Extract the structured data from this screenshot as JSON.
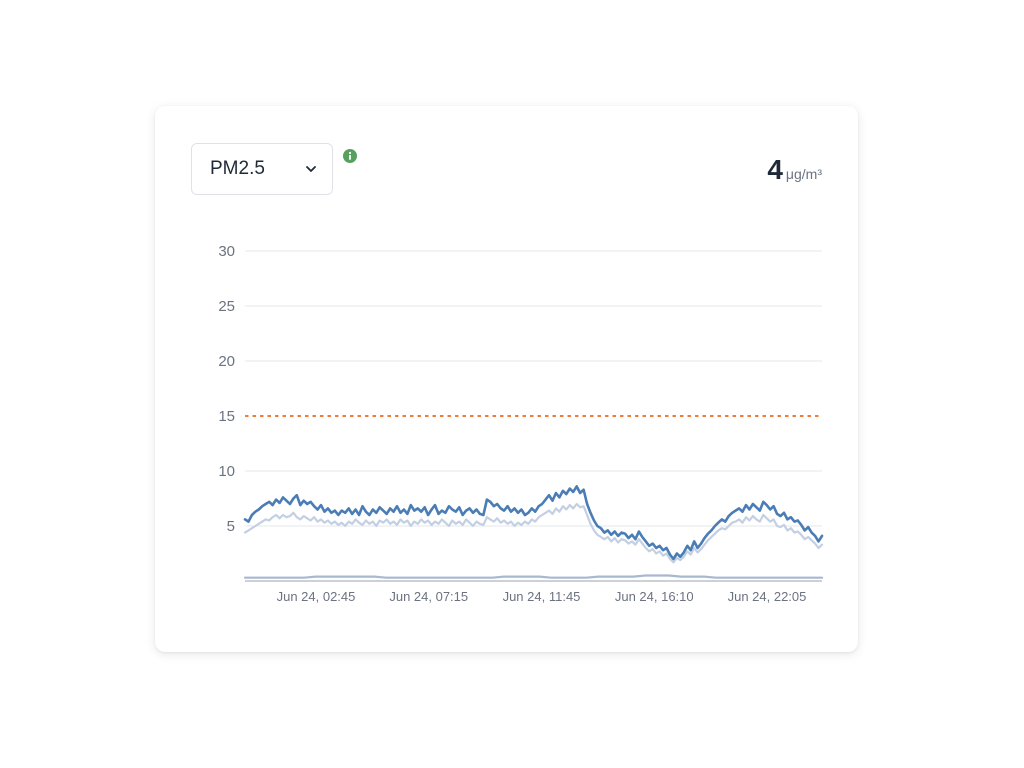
{
  "selector": {
    "selected": "PM2.5"
  },
  "reading": {
    "value": "4",
    "unit": "μg/m³"
  },
  "colors": {
    "main_line": "#4a7db5",
    "secondary_line": "#c3cfe2",
    "baseline_line": "#a9b8d1",
    "threshold": "#ee7d3b",
    "grid": "#e5e7eb",
    "info_badge": "#58a05f"
  },
  "chart_data": {
    "type": "line",
    "ylim": [
      0,
      30
    ],
    "y_ticks": [
      5,
      10,
      15,
      20,
      25,
      30
    ],
    "x_tick_labels": [
      "Jun 24, 02:45",
      "Jun 24, 07:15",
      "Jun 24, 11:45",
      "Jun 24, 16:10",
      "Jun 24, 22:05"
    ],
    "threshold": 15,
    "grid": true,
    "series": [
      {
        "role": "main",
        "values": [
          5.6,
          5.4,
          6.0,
          6.3,
          6.5,
          6.8,
          7.0,
          7.2,
          6.9,
          7.4,
          7.1,
          7.6,
          7.3,
          7.0,
          7.5,
          7.8,
          6.9,
          7.3,
          7.0,
          7.2,
          6.8,
          6.5,
          6.9,
          6.3,
          6.6,
          6.2,
          6.4,
          6.0,
          6.4,
          6.2,
          6.6,
          6.1,
          6.5,
          6.0,
          6.8,
          6.3,
          6.0,
          6.5,
          6.2,
          6.7,
          6.4,
          6.1,
          6.6,
          6.3,
          6.8,
          6.2,
          6.5,
          6.1,
          6.9,
          6.4,
          6.6,
          6.3,
          6.7,
          6.0,
          6.5,
          6.9,
          6.1,
          6.4,
          6.2,
          6.8,
          6.5,
          6.3,
          6.7,
          6.0,
          6.4,
          6.6,
          6.2,
          6.5,
          6.1,
          6.0,
          7.4,
          7.2,
          6.8,
          7.0,
          6.6,
          6.4,
          6.8,
          6.3,
          6.6,
          6.2,
          6.5,
          6.0,
          6.2,
          6.6,
          6.3,
          6.8,
          7.0,
          7.4,
          7.8,
          7.3,
          8.0,
          7.6,
          8.2,
          7.9,
          8.4,
          8.1,
          8.6,
          8.0,
          8.3,
          7.0,
          6.2,
          5.5,
          5.0,
          4.8,
          4.4,
          4.6,
          4.2,
          4.5,
          4.1,
          4.4,
          4.3,
          3.9,
          4.2,
          3.8,
          4.5,
          4.0,
          3.6,
          3.2,
          3.4,
          3.0,
          3.2,
          2.8,
          3.0,
          2.4,
          2.0,
          2.5,
          2.2,
          2.6,
          3.2,
          2.8,
          3.6,
          3.0,
          3.4,
          3.9,
          4.3,
          4.6,
          5.0,
          5.3,
          5.6,
          5.4,
          5.9,
          6.2,
          6.4,
          6.6,
          6.3,
          6.9,
          6.5,
          7.0,
          6.7,
          6.4,
          7.2,
          6.9,
          6.5,
          6.8,
          6.1,
          5.9,
          6.2,
          5.6,
          5.8,
          5.4,
          5.5,
          5.1,
          4.6,
          4.9,
          4.4,
          4.1,
          3.6,
          4.1
        ]
      },
      {
        "role": "secondary",
        "values": [
          4.4,
          4.6,
          4.8,
          5.0,
          5.2,
          5.4,
          5.6,
          5.5,
          5.8,
          6.0,
          5.7,
          6.0,
          5.8,
          5.9,
          6.2,
          5.8,
          5.6,
          5.9,
          5.7,
          5.5,
          5.8,
          5.4,
          5.6,
          5.3,
          5.5,
          5.2,
          5.4,
          5.1,
          5.3,
          5.0,
          5.4,
          5.2,
          5.6,
          5.3,
          5.1,
          5.5,
          5.2,
          5.4,
          5.0,
          5.5,
          5.3,
          5.6,
          5.2,
          5.4,
          5.1,
          5.6,
          5.3,
          5.5,
          5.0,
          5.4,
          5.2,
          5.6,
          5.3,
          5.5,
          5.1,
          5.4,
          5.2,
          5.6,
          5.3,
          5.0,
          5.5,
          5.2,
          5.4,
          5.1,
          5.6,
          5.3,
          5.0,
          5.4,
          5.2,
          5.1,
          5.8,
          5.6,
          5.4,
          5.7,
          5.3,
          5.5,
          5.2,
          5.4,
          5.0,
          5.3,
          5.1,
          5.4,
          5.2,
          5.6,
          5.4,
          5.8,
          6.0,
          6.2,
          6.4,
          6.1,
          6.6,
          6.3,
          6.8,
          6.5,
          6.9,
          6.6,
          7.0,
          6.7,
          6.8,
          6.0,
          5.2,
          4.6,
          4.2,
          4.0,
          3.8,
          4.0,
          3.6,
          3.9,
          3.5,
          3.8,
          3.7,
          3.4,
          3.6,
          3.3,
          3.8,
          3.4,
          3.0,
          2.7,
          2.9,
          2.5,
          2.7,
          2.3,
          2.5,
          2.0,
          1.7,
          2.1,
          1.9,
          2.2,
          2.7,
          2.4,
          3.0,
          2.6,
          2.9,
          3.3,
          3.7,
          4.0,
          4.3,
          4.6,
          4.8,
          4.7,
          5.0,
          5.3,
          5.4,
          5.6,
          5.3,
          5.8,
          5.5,
          5.9,
          5.6,
          5.4,
          6.0,
          5.7,
          5.4,
          5.6,
          5.0,
          4.9,
          5.1,
          4.6,
          4.8,
          4.4,
          4.5,
          4.2,
          3.8,
          4.0,
          3.7,
          3.4,
          3.0,
          3.3
        ]
      },
      {
        "role": "baseline",
        "values": [
          0.3,
          0.3,
          0.3,
          0.3,
          0.3,
          0.3,
          0.4,
          0.4,
          0.4,
          0.4,
          0.4,
          0.4,
          0.3,
          0.3,
          0.3,
          0.3,
          0.3,
          0.3,
          0.3,
          0.3,
          0.3,
          0.3,
          0.4,
          0.4,
          0.4,
          0.4,
          0.3,
          0.3,
          0.3,
          0.3,
          0.4,
          0.4,
          0.4,
          0.4,
          0.5,
          0.5,
          0.5,
          0.4,
          0.4,
          0.4,
          0.3,
          0.3,
          0.3,
          0.3,
          0.3,
          0.3,
          0.3,
          0.3,
          0.3,
          0.3
        ]
      }
    ]
  }
}
